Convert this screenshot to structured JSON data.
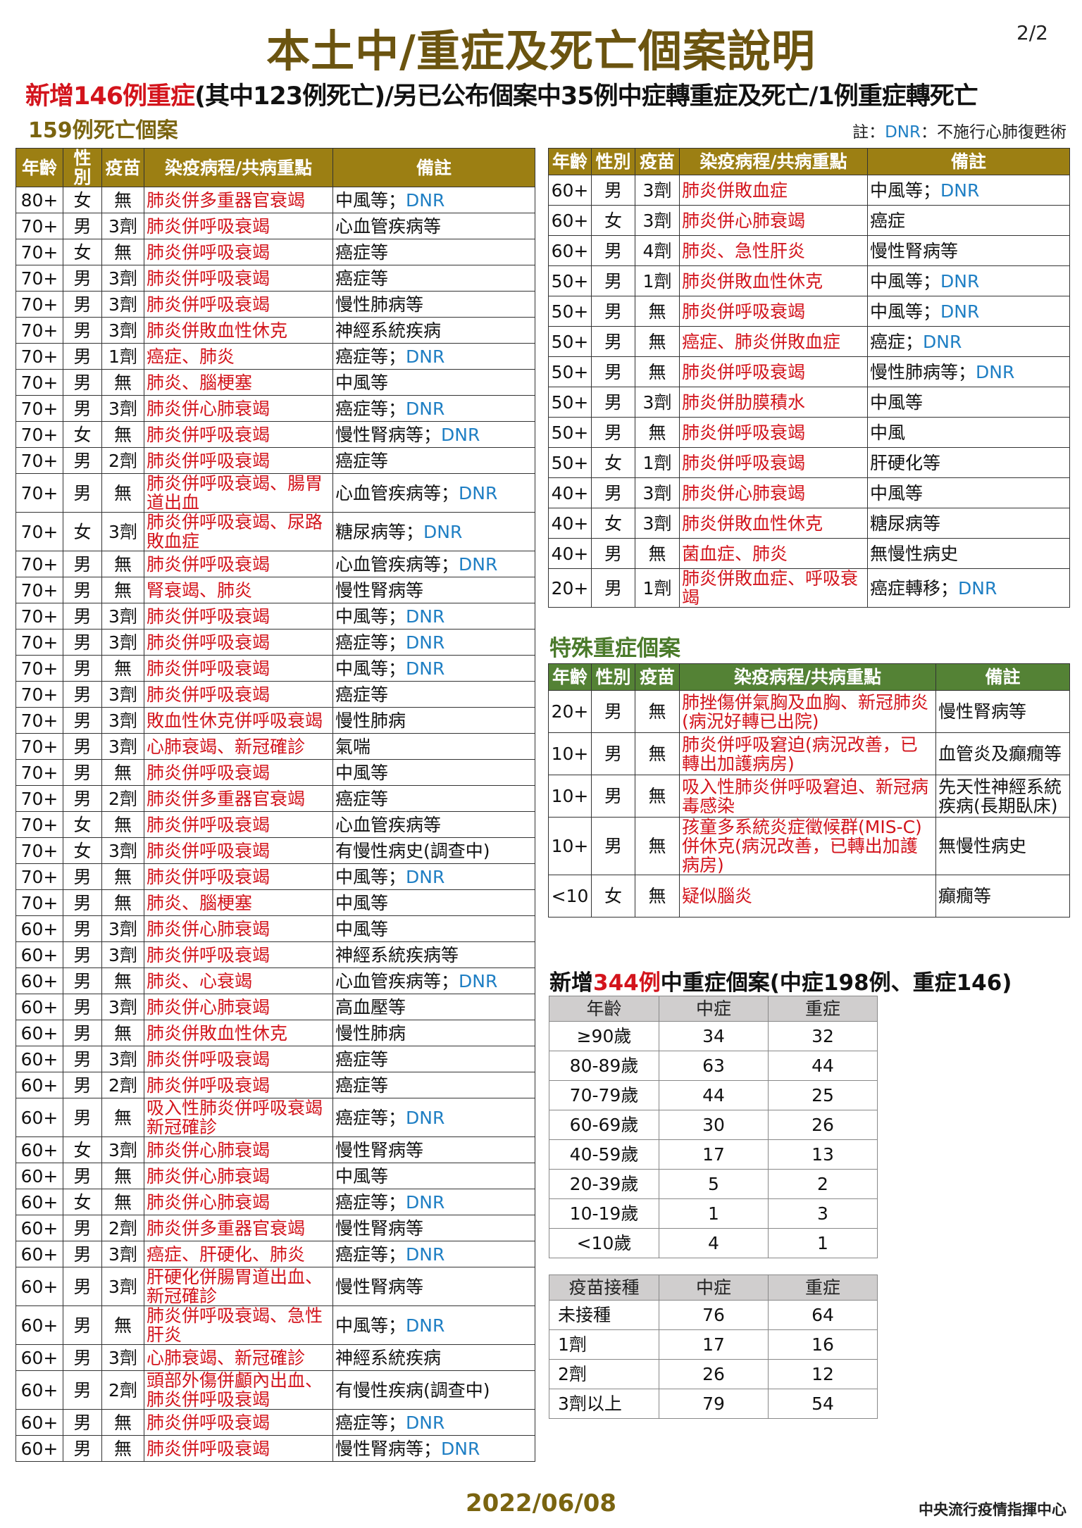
{
  "header": {
    "title": "本土中/重症及死亡個案說明",
    "page": "2/2",
    "subtitle_red": "新增146例重症",
    "subtitle_rest": "(其中123例死亡)/另已公布個案中35例中症轉重症及死亡/1例重症轉死亡",
    "deaths_title": "159例死亡個案",
    "note_prefix": "註：",
    "note_dnr": "DNR",
    "note_suffix": "：不施行心肺復甦術"
  },
  "colors": {
    "title": "#6b5410",
    "header_gold": "#9c7f13",
    "header_green": "#548235",
    "course_red": "#d3141c",
    "dnr_blue": "#1f7fc4"
  },
  "columns": [
    "年齡",
    "性別",
    "疫苗",
    "染疫病程/共病重點",
    "備註"
  ],
  "left_rows": [
    [
      "80+",
      "女",
      "無",
      "肺炎併多重器官衰竭",
      "中風等；",
      "DNR"
    ],
    [
      "70+",
      "男",
      "3劑",
      "肺炎併呼吸衰竭",
      "心血管疾病等",
      ""
    ],
    [
      "70+",
      "女",
      "無",
      "肺炎併呼吸衰竭",
      "癌症等",
      ""
    ],
    [
      "70+",
      "男",
      "3劑",
      "肺炎併呼吸衰竭",
      "癌症等",
      ""
    ],
    [
      "70+",
      "男",
      "3劑",
      "肺炎併呼吸衰竭",
      "慢性肺病等",
      ""
    ],
    [
      "70+",
      "男",
      "3劑",
      "肺炎併敗血性休克",
      "神經系統疾病",
      ""
    ],
    [
      "70+",
      "男",
      "1劑",
      "癌症、肺炎",
      "癌症等；",
      "DNR"
    ],
    [
      "70+",
      "男",
      "無",
      "肺炎、腦梗塞",
      "中風等",
      ""
    ],
    [
      "70+",
      "男",
      "3劑",
      "肺炎併心肺衰竭",
      "癌症等；",
      "DNR"
    ],
    [
      "70+",
      "女",
      "無",
      "肺炎併呼吸衰竭",
      "慢性腎病等；",
      "DNR"
    ],
    [
      "70+",
      "男",
      "2劑",
      "肺炎併呼吸衰竭",
      "癌症等",
      ""
    ],
    [
      "70+",
      "男",
      "無",
      "肺炎併呼吸衰竭、腸胃道出血",
      "心血管疾病等；",
      "DNR"
    ],
    [
      "70+",
      "女",
      "3劑",
      "肺炎併呼吸衰竭、尿路敗血症",
      "糖尿病等；",
      "DNR"
    ],
    [
      "70+",
      "男",
      "無",
      "肺炎併呼吸衰竭",
      "心血管疾病等；",
      "DNR"
    ],
    [
      "70+",
      "男",
      "無",
      "腎衰竭、肺炎",
      "慢性腎病等",
      ""
    ],
    [
      "70+",
      "男",
      "3劑",
      "肺炎併呼吸衰竭",
      "中風等；",
      "DNR"
    ],
    [
      "70+",
      "男",
      "3劑",
      "肺炎併呼吸衰竭",
      "癌症等；",
      "DNR"
    ],
    [
      "70+",
      "男",
      "無",
      "肺炎併呼吸衰竭",
      "中風等；",
      "DNR"
    ],
    [
      "70+",
      "男",
      "3劑",
      "肺炎併呼吸衰竭",
      "癌症等",
      ""
    ],
    [
      "70+",
      "男",
      "3劑",
      "敗血性休克併呼吸衰竭",
      "慢性肺病",
      ""
    ],
    [
      "70+",
      "男",
      "3劑",
      "心肺衰竭、新冠確診",
      "氣喘",
      ""
    ],
    [
      "70+",
      "男",
      "無",
      "肺炎併呼吸衰竭",
      "中風等",
      ""
    ],
    [
      "70+",
      "男",
      "2劑",
      "肺炎併多重器官衰竭",
      "癌症等",
      ""
    ],
    [
      "70+",
      "女",
      "無",
      "肺炎併呼吸衰竭",
      "心血管疾病等",
      ""
    ],
    [
      "70+",
      "女",
      "3劑",
      "肺炎併呼吸衰竭",
      "有慢性病史(調查中)",
      ""
    ],
    [
      "70+",
      "男",
      "無",
      "肺炎併呼吸衰竭",
      "中風等；",
      "DNR"
    ],
    [
      "70+",
      "男",
      "無",
      "肺炎、腦梗塞",
      "中風等",
      ""
    ],
    [
      "60+",
      "男",
      "3劑",
      "肺炎併心肺衰竭",
      "中風等",
      ""
    ],
    [
      "60+",
      "男",
      "3劑",
      "肺炎併呼吸衰竭",
      "神經系統疾病等",
      ""
    ],
    [
      "60+",
      "男",
      "無",
      "肺炎、心衰竭",
      "心血管疾病等；",
      "DNR"
    ],
    [
      "60+",
      "男",
      "3劑",
      "肺炎併心肺衰竭",
      "高血壓等",
      ""
    ],
    [
      "60+",
      "男",
      "無",
      "肺炎併敗血性休克",
      "慢性肺病",
      ""
    ],
    [
      "60+",
      "男",
      "3劑",
      "肺炎併呼吸衰竭",
      "癌症等",
      ""
    ],
    [
      "60+",
      "男",
      "2劑",
      "肺炎併呼吸衰竭",
      "癌症等",
      ""
    ],
    [
      "60+",
      "男",
      "無",
      "吸入性肺炎併呼吸衰竭新冠確診",
      "癌症等；",
      "DNR"
    ],
    [
      "60+",
      "女",
      "3劑",
      "肺炎併心肺衰竭",
      "慢性腎病等",
      ""
    ],
    [
      "60+",
      "男",
      "無",
      "肺炎併心肺衰竭",
      "中風等",
      ""
    ],
    [
      "60+",
      "女",
      "無",
      "肺炎併心肺衰竭",
      "癌症等；",
      "DNR"
    ],
    [
      "60+",
      "男",
      "2劑",
      "肺炎併多重器官衰竭",
      "慢性腎病等",
      ""
    ],
    [
      "60+",
      "男",
      "3劑",
      "癌症、肝硬化、肺炎",
      "癌症等；",
      "DNR"
    ],
    [
      "60+",
      "男",
      "3劑",
      "肝硬化併腸胃道出血、新冠確診",
      "慢性腎病等",
      ""
    ],
    [
      "60+",
      "男",
      "無",
      "肺炎併呼吸衰竭、急性肝炎",
      "中風等；",
      "DNR"
    ],
    [
      "60+",
      "男",
      "3劑",
      "心肺衰竭、新冠確診",
      "神經系統疾病",
      ""
    ],
    [
      "60+",
      "男",
      "2劑",
      "頭部外傷併顱內出血、肺炎併呼吸衰竭",
      "有慢性疾病(調查中)",
      ""
    ],
    [
      "60+",
      "男",
      "無",
      "肺炎併呼吸衰竭",
      "癌症等；",
      "DNR"
    ],
    [
      "60+",
      "男",
      "無",
      "肺炎併呼吸衰竭",
      "慢性腎病等；",
      "DNR"
    ]
  ],
  "right_rows": [
    [
      "60+",
      "男",
      "3劑",
      "肺炎併敗血症",
      "中風等；",
      "DNR"
    ],
    [
      "60+",
      "女",
      "3劑",
      "肺炎併心肺衰竭",
      "癌症",
      ""
    ],
    [
      "60+",
      "男",
      "4劑",
      "肺炎、急性肝炎",
      "慢性腎病等",
      ""
    ],
    [
      "50+",
      "男",
      "1劑",
      "肺炎併敗血性休克",
      "中風等；",
      "DNR"
    ],
    [
      "50+",
      "男",
      "無",
      "肺炎併呼吸衰竭",
      "中風等；",
      "DNR"
    ],
    [
      "50+",
      "男",
      "無",
      "癌症、肺炎併敗血症",
      "癌症；",
      "DNR"
    ],
    [
      "50+",
      "男",
      "無",
      "肺炎併呼吸衰竭",
      "慢性肺病等；",
      "DNR"
    ],
    [
      "50+",
      "男",
      "3劑",
      "肺炎併肋膜積水",
      "中風等",
      ""
    ],
    [
      "50+",
      "男",
      "無",
      "肺炎併呼吸衰竭",
      "中風",
      ""
    ],
    [
      "50+",
      "女",
      "1劑",
      "肺炎併呼吸衰竭",
      "肝硬化等",
      ""
    ],
    [
      "40+",
      "男",
      "3劑",
      "肺炎併心肺衰竭",
      "中風等",
      ""
    ],
    [
      "40+",
      "女",
      "3劑",
      "肺炎併敗血性休克",
      "糖尿病等",
      ""
    ],
    [
      "40+",
      "男",
      "無",
      "菌血症、肺炎",
      "無慢性病史",
      ""
    ],
    [
      "20+",
      "男",
      "1劑",
      "肺炎併敗血症、呼吸衰竭",
      "癌症轉移；",
      "DNR"
    ]
  ],
  "special": {
    "title": "特殊重症個案",
    "rows": [
      [
        "20+",
        "男",
        "無",
        "肺挫傷併氣胸及血胸、新冠肺炎(病況好轉已出院)",
        "慢性腎病等",
        ""
      ],
      [
        "10+",
        "男",
        "無",
        "肺炎併呼吸窘迫(病況改善，已轉出加護病房)",
        "血管炎及癲癇等",
        ""
      ],
      [
        "10+",
        "男",
        "無",
        "吸入性肺炎併呼吸窘迫、新冠病毒感染",
        "先天性神經系統疾病(長期臥床)",
        ""
      ],
      [
        "10+",
        "男",
        "無",
        "孩童多系統炎症徵候群(MIS-C)併休克(病況改善，已轉出加護病房)",
        "無慢性病史",
        ""
      ],
      [
        "<10",
        "女",
        "無",
        "疑似腦炎",
        "癲癇等",
        ""
      ]
    ]
  },
  "stats": {
    "title_prefix": "新增",
    "title_red": "344例",
    "title_suffix": "中重症個案(中症198例、重症146)",
    "age_table": {
      "headers": [
        "年齡",
        "中症",
        "重症"
      ],
      "rows": [
        [
          "≥90歲",
          "34",
          "32"
        ],
        [
          "80-89歲",
          "63",
          "44"
        ],
        [
          "70-79歲",
          "44",
          "25"
        ],
        [
          "60-69歲",
          "30",
          "26"
        ],
        [
          "40-59歲",
          "17",
          "13"
        ],
        [
          "20-39歲",
          "5",
          "2"
        ],
        [
          "10-19歲",
          "1",
          "3"
        ],
        [
          "<10歲",
          "4",
          "1"
        ]
      ]
    },
    "vaccine_table": {
      "headers": [
        "疫苗接種",
        "中症",
        "重症"
      ],
      "rows": [
        [
          "未接種",
          "76",
          "64"
        ],
        [
          "1劑",
          "17",
          "16"
        ],
        [
          "2劑",
          "26",
          "12"
        ],
        [
          "3劑以上",
          "79",
          "54"
        ]
      ]
    }
  },
  "footer": {
    "date": "2022/06/08",
    "org": "中央流行疫情指揮中心"
  }
}
